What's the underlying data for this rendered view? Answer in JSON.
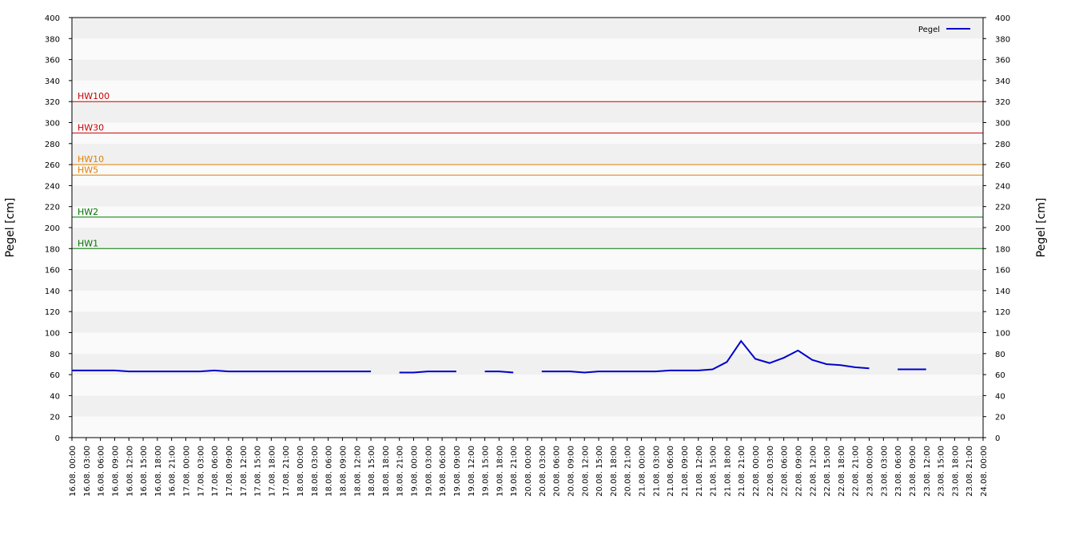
{
  "chart_data": {
    "type": "line",
    "y_label": "Pegel [cm]",
    "ylim": [
      0,
      400
    ],
    "yticks": [
      0,
      20,
      40,
      60,
      80,
      100,
      120,
      140,
      160,
      180,
      200,
      220,
      240,
      260,
      280,
      300,
      320,
      340,
      360,
      380,
      400
    ],
    "categories": [
      "16.08. 00:00",
      "16.08. 03:00",
      "16.08. 06:00",
      "16.08. 09:00",
      "16.08. 12:00",
      "16.08. 15:00",
      "16.08. 18:00",
      "16.08. 21:00",
      "17.08. 00:00",
      "17.08. 03:00",
      "17.08. 06:00",
      "17.08. 09:00",
      "17.08. 12:00",
      "17.08. 15:00",
      "17.08. 18:00",
      "17.08. 21:00",
      "18.08. 00:00",
      "18.08. 03:00",
      "18.08. 06:00",
      "18.08. 09:00",
      "18.08. 12:00",
      "18.08. 15:00",
      "18.08. 18:00",
      "18.08. 21:00",
      "19.08. 00:00",
      "19.08. 03:00",
      "19.08. 06:00",
      "19.08. 09:00",
      "19.08. 12:00",
      "19.08. 15:00",
      "19.08. 18:00",
      "19.08. 21:00",
      "20.08. 00:00",
      "20.08. 03:00",
      "20.08. 06:00",
      "20.08. 09:00",
      "20.08. 12:00",
      "20.08. 15:00",
      "20.08. 18:00",
      "20.08. 21:00",
      "21.08. 00:00",
      "21.08. 03:00",
      "21.08. 06:00",
      "21.08. 09:00",
      "21.08. 12:00",
      "21.08. 15:00",
      "21.08. 18:00",
      "21.08. 21:00",
      "22.08. 00:00",
      "22.08. 03:00",
      "22.08. 06:00",
      "22.08. 09:00",
      "22.08. 12:00",
      "22.08. 15:00",
      "22.08. 18:00",
      "22.08. 21:00",
      "23.08. 00:00",
      "23.08. 03:00",
      "23.08. 06:00",
      "23.08. 09:00",
      "23.08. 12:00",
      "23.08. 15:00",
      "23.08. 18:00",
      "23.08. 21:00",
      "24.08. 00:00"
    ],
    "series": [
      {
        "name": "Pegel",
        "color": "#0000cc",
        "values": [
          64,
          64,
          64,
          64,
          63,
          63,
          63,
          63,
          63,
          63,
          64,
          63,
          63,
          63,
          63,
          63,
          63,
          63,
          63,
          63,
          63,
          63,
          null,
          62,
          62,
          63,
          63,
          63,
          null,
          63,
          63,
          62,
          null,
          63,
          63,
          63,
          62,
          63,
          63,
          63,
          63,
          63,
          64,
          64,
          64,
          65,
          72,
          92,
          75,
          71,
          76,
          83,
          74,
          70,
          69,
          67,
          66,
          null,
          65,
          65,
          65,
          null,
          null,
          null,
          null
        ]
      }
    ],
    "thresholds": [
      {
        "label": "HW100",
        "value": 320,
        "color": "#cc0000"
      },
      {
        "label": "HW30",
        "value": 290,
        "color": "#cc0000"
      },
      {
        "label": "HW10",
        "value": 260,
        "color": "#e08000"
      },
      {
        "label": "HW5",
        "value": 250,
        "color": "#e08000"
      },
      {
        "label": "HW2",
        "value": 210,
        "color": "#007700"
      },
      {
        "label": "HW1",
        "value": 180,
        "color": "#007700"
      }
    ],
    "legend": "upper right"
  }
}
